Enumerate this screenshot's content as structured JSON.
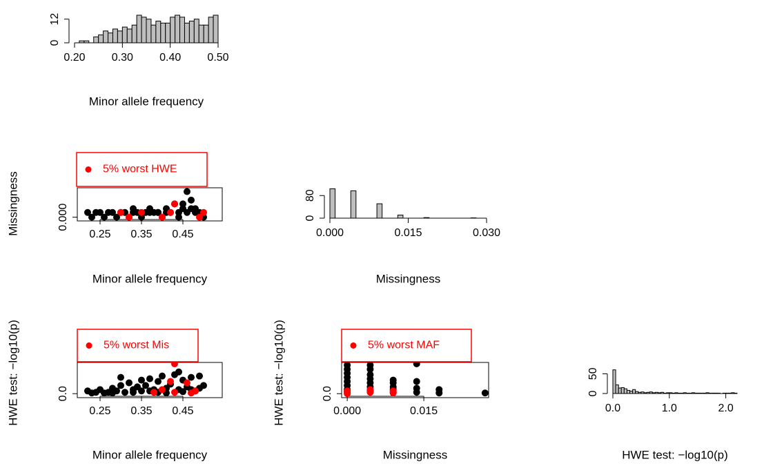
{
  "chart_data": [
    {
      "type": "histogram",
      "xlabel": "Minor allele frequency",
      "color": "#bebebe",
      "bins": [
        0.21,
        0.22,
        0.23,
        0.24,
        0.25,
        0.26,
        0.27,
        0.28,
        0.29,
        0.3,
        0.31,
        0.32,
        0.33,
        0.34,
        0.35,
        0.36,
        0.37,
        0.38,
        0.39,
        0.4,
        0.41,
        0.42,
        0.43,
        0.44,
        0.45,
        0.46,
        0.47,
        0.48,
        0.49,
        0.5
      ],
      "values": [
        1,
        1,
        0,
        3,
        4,
        6,
        5,
        7,
        6,
        8,
        7,
        9,
        14,
        13,
        12,
        9,
        11,
        10,
        10,
        13,
        14,
        13,
        10,
        11,
        12,
        9,
        9,
        13,
        14
      ],
      "xlim": [
        0.2,
        0.5
      ],
      "ylim": [
        0,
        14
      ],
      "xticks": [
        {
          "value": 0.2,
          "label": "0.20"
        },
        {
          "value": 0.3,
          "label": "0.30"
        },
        {
          "value": 0.4,
          "label": "0.40"
        },
        {
          "value": 0.5,
          "label": "0.50"
        }
      ],
      "yticks": [
        0,
        12
      ]
    },
    {
      "type": "scatter",
      "xlabel": "Minor allele frequency",
      "ylabel": "Missingness",
      "legend": "top-left",
      "xlim": [
        0.195,
        0.545
      ],
      "ylim": [
        -0.001,
        0.031
      ],
      "xticks": [
        0.25,
        0.35,
        0.45
      ],
      "yticks": [
        {
          "value": 0,
          "label": "0.000"
        }
      ],
      "series": [
        {
          "color": "#000000",
          "x": [
            0.22,
            0.23,
            0.25,
            0.26,
            0.27,
            0.28,
            0.29,
            0.3,
            0.31,
            0.32,
            0.33,
            0.34,
            0.35,
            0.36,
            0.37,
            0.38,
            0.39,
            0.4,
            0.41,
            0.42,
            0.43,
            0.44,
            0.45,
            0.46,
            0.47,
            0.48,
            0.49,
            0.5,
            0.24,
            0.33,
            0.37,
            0.41,
            0.45,
            0.46,
            0.47,
            0.48,
            0.44,
            0.39
          ],
          "values": [
            0.005,
            0,
            0.005,
            0,
            0.005,
            0.005,
            0,
            0.005,
            0.005,
            0,
            0.005,
            0.005,
            0,
            0.005,
            0.009,
            0.005,
            0.005,
            0,
            0.009,
            0.005,
            0.014,
            0.005,
            0.009,
            0.027,
            0.018,
            0.009,
            0.005,
            0,
            0.005,
            0.009,
            0.005,
            0.005,
            0.014,
            0.005,
            0.009,
            0.005,
            0,
            0.005
          ]
        },
        {
          "name": "5% worst HWE",
          "color": "#ff0000",
          "x": [
            0.3,
            0.32,
            0.35,
            0.4,
            0.42,
            0.43,
            0.49,
            0.5
          ],
          "values": [
            0.005,
            0,
            0.005,
            0,
            0.005,
            0.014,
            0,
            0.005
          ]
        }
      ]
    },
    {
      "type": "histogram",
      "xlabel": "Missingness",
      "color": "#bebebe",
      "bins": [
        0,
        0.001,
        0.002,
        0.003,
        0.004,
        0.005,
        0.006,
        0.007,
        0.008,
        0.009,
        0.01,
        0.011,
        0.012,
        0.013,
        0.014,
        0.015,
        0.016,
        0.017,
        0.018,
        0.019,
        0.02,
        0.021,
        0.022,
        0.023,
        0.024,
        0.025,
        0.026,
        0.027,
        0.028,
        0.029,
        0.03
      ],
      "values": [
        104,
        0,
        0,
        0,
        97,
        0,
        0,
        0,
        0,
        51,
        0,
        0,
        0,
        11,
        0,
        0,
        0,
        0,
        2,
        0,
        0,
        0,
        0,
        0,
        0,
        0,
        0,
        1,
        0,
        0
      ],
      "xlim": [
        0,
        0.03
      ],
      "ylim": [
        0,
        110
      ],
      "xticks": [
        {
          "value": 0,
          "label": "0.000"
        },
        {
          "value": 0.015,
          "label": "0.015"
        },
        {
          "value": 0.03,
          "label": "0.030"
        }
      ],
      "yticks": [
        0,
        80
      ]
    },
    {
      "type": "scatter",
      "xlabel": "Minor allele frequency",
      "ylabel": "HWE test: −log10(p)",
      "legend": "top-left",
      "xlim": [
        0.195,
        0.545
      ],
      "ylim": [
        -0.09,
        2.3
      ],
      "xticks": [
        0.25,
        0.35,
        0.45
      ],
      "yticks": [
        {
          "value": 0,
          "label": "0.0"
        }
      ],
      "series": [
        {
          "color": "#000000",
          "x": [
            0.22,
            0.23,
            0.24,
            0.25,
            0.26,
            0.27,
            0.28,
            0.29,
            0.3,
            0.3,
            0.31,
            0.32,
            0.33,
            0.34,
            0.35,
            0.35,
            0.36,
            0.37,
            0.38,
            0.39,
            0.4,
            0.41,
            0.42,
            0.43,
            0.44,
            0.45,
            0.46,
            0.47,
            0.48,
            0.49,
            0.5,
            0.33,
            0.37,
            0.41,
            0.45,
            0.49,
            0.28,
            0.39,
            0.44,
            0.47
          ],
          "values": [
            0.2,
            0.05,
            0.1,
            0.3,
            0.05,
            0.1,
            0.4,
            0.2,
            1.2,
            0.6,
            0.1,
            0.8,
            0.3,
            0.5,
            1.0,
            0.2,
            0.6,
            1.1,
            0.3,
            0.9,
            1.3,
            0.4,
            0.7,
            1.4,
            0.3,
            1.0,
            0.5,
            1.2,
            0.2,
            1.3,
            0.6,
            0.1,
            0.2,
            0.05,
            0.15,
            0.4,
            0.05,
            0.1,
            1.6,
            0.3
          ]
        },
        {
          "name": "5% worst Mis",
          "color": "#ff0000",
          "x": [
            0.38,
            0.4,
            0.42,
            0.43,
            0.43,
            0.46,
            0.47,
            0.48
          ],
          "values": [
            0.1,
            0.3,
            0.9,
            2.2,
            0.1,
            0.8,
            0.05,
            0.2
          ]
        }
      ]
    },
    {
      "type": "scatter",
      "xlabel": "Missingness",
      "ylabel": "HWE test: −log10(p)",
      "legend": "top-left",
      "xlim": [
        -0.0011,
        0.0277
      ],
      "ylim": [
        -0.09,
        2.3
      ],
      "xticks": [
        {
          "value": 0,
          "label": "0.000"
        },
        {
          "value": 0.015,
          "label": "0.015"
        }
      ],
      "yticks": [
        {
          "value": 0,
          "label": "0.0"
        }
      ],
      "series": [
        {
          "color": "#000000",
          "x": [
            0,
            0,
            0,
            0,
            0,
            0,
            0,
            0,
            0.0045,
            0.0045,
            0.0045,
            0.0045,
            0.0045,
            0.0045,
            0.0045,
            0.009,
            0.009,
            0.009,
            0.009,
            0.009,
            0.0136,
            0.0136,
            0.0136,
            0.0136,
            0.018,
            0.018,
            0.027
          ],
          "values": [
            0.3,
            0.6,
            0.9,
            1.2,
            1.5,
            1.8,
            2.1,
            0.15,
            0.2,
            0.5,
            0.8,
            1.1,
            1.4,
            1.8,
            2.1,
            0.1,
            0.3,
            0.5,
            0.8,
            1.0,
            0.1,
            0.4,
            0.9,
            2.2,
            0.05,
            0.3,
            0.05
          ]
        },
        {
          "name": "5% worst MAF",
          "color": "#ff0000",
          "x": [
            0,
            0,
            0,
            0.0045,
            0.0045,
            0.009,
            0.009
          ],
          "values": [
            0,
            0.1,
            0.2,
            0.1,
            0.3,
            0.05,
            0.2
          ]
        }
      ]
    },
    {
      "type": "histogram",
      "xlabel": "HWE test: −log10(p)",
      "color": "#bebebe",
      "bins": [
        0,
        0.05,
        0.1,
        0.15,
        0.2,
        0.25,
        0.3,
        0.35,
        0.4,
        0.45,
        0.5,
        0.55,
        0.6,
        0.65,
        0.7,
        0.75,
        0.8,
        0.85,
        0.9,
        0.95,
        1.0,
        1.05,
        1.1,
        1.15,
        1.2,
        1.25,
        1.3,
        1.35,
        1.4,
        1.45,
        1.5,
        1.55,
        1.6,
        1.65,
        1.7,
        1.75,
        1.8,
        1.85,
        1.9,
        1.95,
        2.0,
        2.05,
        2.1,
        2.15,
        2.2
      ],
      "values": [
        60,
        22,
        14,
        15,
        12,
        8,
        6,
        10,
        5,
        3,
        4,
        2,
        3,
        4,
        2,
        3,
        2,
        3,
        1,
        2,
        2,
        1,
        2,
        1,
        1,
        2,
        1,
        1,
        2,
        1,
        1,
        1,
        1,
        2,
        1,
        1,
        1,
        1,
        0,
        1,
        1,
        1,
        2,
        1
      ],
      "xlim": [
        0,
        2.2
      ],
      "ylim": [
        0,
        70
      ],
      "xticks": [
        {
          "value": 0,
          "label": "0.0"
        },
        {
          "value": 1,
          "label": "1.0"
        },
        {
          "value": 2,
          "label": "2.0"
        }
      ],
      "yticks": [
        0,
        50
      ]
    }
  ]
}
